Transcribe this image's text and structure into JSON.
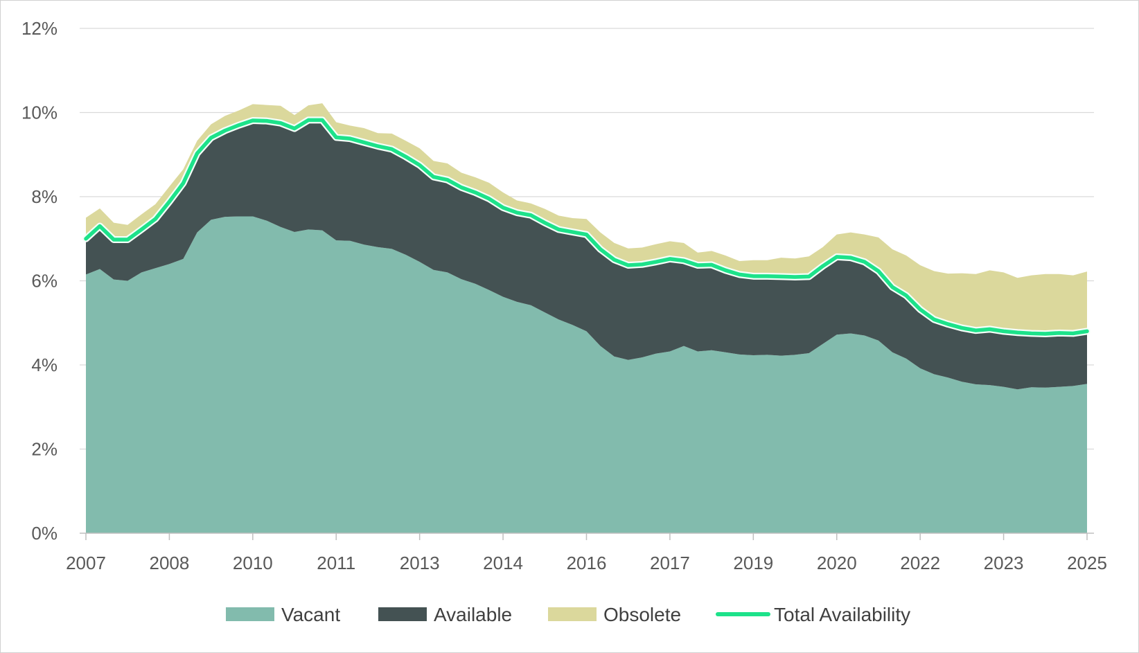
{
  "chart_data": {
    "type": "area",
    "title": "",
    "xlabel": "",
    "ylabel": "",
    "ylim": [
      0,
      12
    ],
    "y_ticks": [
      0,
      2,
      4,
      6,
      8,
      10,
      12
    ],
    "y_tick_labels": [
      "0%",
      "2%",
      "4%",
      "6%",
      "8%",
      "10%",
      "12%"
    ],
    "x_tick_labels": [
      "2007",
      "2008",
      "2010",
      "2011",
      "2013",
      "2014",
      "2016",
      "2017",
      "2019",
      "2020",
      "2022",
      "2023",
      "2025"
    ],
    "grid": true,
    "legend_position": "bottom",
    "series": [
      {
        "name": "Vacant",
        "kind": "stacked-area",
        "color": "#82bbad",
        "values": [
          6.15,
          6.28,
          6.03,
          6.0,
          6.2,
          6.3,
          6.4,
          6.52,
          7.15,
          7.45,
          7.52,
          7.53,
          7.53,
          7.43,
          7.28,
          7.16,
          7.22,
          7.2,
          6.96,
          6.95,
          6.86,
          6.8,
          6.76,
          6.62,
          6.45,
          6.26,
          6.2,
          6.04,
          5.93,
          5.78,
          5.62,
          5.5,
          5.42,
          5.25,
          5.08,
          4.95,
          4.8,
          4.45,
          4.2,
          4.12,
          4.18,
          4.27,
          4.32,
          4.45,
          4.32,
          4.35,
          4.3,
          4.25,
          4.23,
          4.24,
          4.22,
          4.24,
          4.28,
          4.5,
          4.72,
          4.75,
          4.7,
          4.58,
          4.3,
          4.15,
          3.92,
          3.78,
          3.7,
          3.6,
          3.54,
          3.52,
          3.48,
          3.42,
          3.47,
          3.46,
          3.48,
          3.5,
          3.55
        ]
      },
      {
        "name": "Available",
        "kind": "stacked-area",
        "color": "#445253",
        "values": [
          0.85,
          1.02,
          0.95,
          0.98,
          1.02,
          1.17,
          1.48,
          1.8,
          1.88,
          1.95,
          2.05,
          2.17,
          2.28,
          2.37,
          2.47,
          2.46,
          2.6,
          2.62,
          2.45,
          2.43,
          2.43,
          2.4,
          2.37,
          2.33,
          2.3,
          2.21,
          2.2,
          2.18,
          2.17,
          2.17,
          2.12,
          2.12,
          2.14,
          2.13,
          2.14,
          2.21,
          2.3,
          2.3,
          2.3,
          2.25,
          2.21,
          2.18,
          2.2,
          2.03,
          2.05,
          2.03,
          1.95,
          1.9,
          1.88,
          1.87,
          1.88,
          1.85,
          1.82,
          1.85,
          1.85,
          1.8,
          1.75,
          1.65,
          1.55,
          1.5,
          1.4,
          1.3,
          1.27,
          1.28,
          1.28,
          1.33,
          1.32,
          1.35,
          1.28,
          1.28,
          1.28,
          1.25,
          1.25
        ]
      },
      {
        "name": "Obsolete",
        "kind": "stacked-area",
        "color": "#dbd89c",
        "values": [
          0.5,
          0.42,
          0.4,
          0.35,
          0.36,
          0.35,
          0.36,
          0.33,
          0.3,
          0.32,
          0.35,
          0.35,
          0.39,
          0.38,
          0.41,
          0.32,
          0.35,
          0.4,
          0.36,
          0.31,
          0.34,
          0.31,
          0.37,
          0.38,
          0.4,
          0.38,
          0.39,
          0.35,
          0.36,
          0.38,
          0.36,
          0.29,
          0.28,
          0.33,
          0.33,
          0.33,
          0.37,
          0.4,
          0.4,
          0.4,
          0.4,
          0.42,
          0.42,
          0.42,
          0.3,
          0.33,
          0.35,
          0.32,
          0.38,
          0.38,
          0.45,
          0.44,
          0.48,
          0.45,
          0.53,
          0.6,
          0.65,
          0.8,
          0.9,
          0.95,
          1.05,
          1.15,
          1.2,
          1.3,
          1.34,
          1.4,
          1.4,
          1.3,
          1.38,
          1.42,
          1.4,
          1.38,
          1.42
        ]
      },
      {
        "name": "Total Availability",
        "kind": "line",
        "color": "#1de28a",
        "values": [
          7.0,
          7.3,
          6.98,
          6.98,
          7.22,
          7.47,
          7.88,
          8.32,
          9.03,
          9.4,
          9.57,
          9.7,
          9.81,
          9.8,
          9.75,
          9.62,
          9.82,
          9.82,
          9.41,
          9.38,
          9.29,
          9.2,
          9.13,
          8.95,
          8.75,
          8.47,
          8.4,
          8.22,
          8.1,
          7.95,
          7.74,
          7.62,
          7.56,
          7.38,
          7.22,
          7.16,
          7.1,
          6.75,
          6.5,
          6.37,
          6.39,
          6.45,
          6.52,
          6.48,
          6.37,
          6.38,
          6.25,
          6.15,
          6.11,
          6.11,
          6.1,
          6.09,
          6.1,
          6.35,
          6.57,
          6.55,
          6.45,
          6.23,
          5.85,
          5.65,
          5.32,
          5.08,
          4.97,
          4.88,
          4.82,
          4.85,
          4.8,
          4.77,
          4.75,
          4.74,
          4.76,
          4.75,
          4.8
        ]
      }
    ]
  }
}
